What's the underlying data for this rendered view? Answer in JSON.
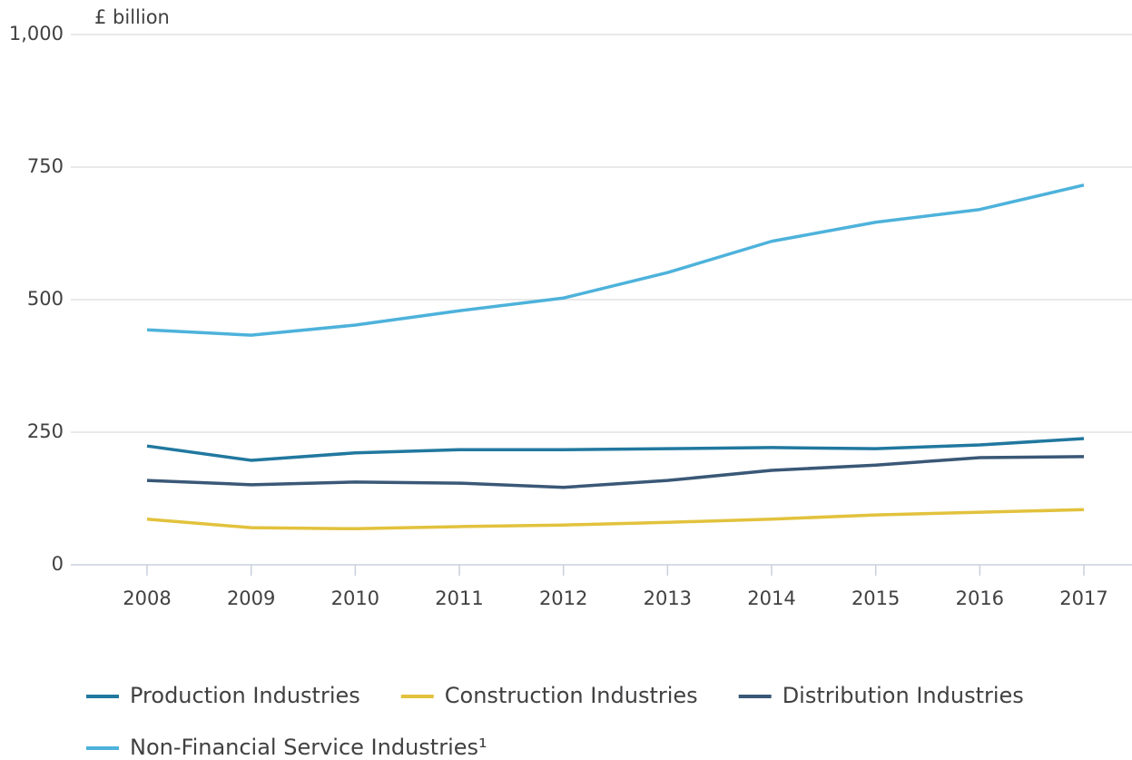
{
  "chart_data": {
    "type": "line",
    "y_label": "£ billion",
    "categories": [
      "2008",
      "2009",
      "2010",
      "2011",
      "2012",
      "2013",
      "2014",
      "2015",
      "2016",
      "2017"
    ],
    "series": [
      {
        "name": "Production Industries",
        "color": "#21789f",
        "values": [
          224,
          197,
          211,
          217,
          217,
          219,
          221,
          219,
          226,
          238
        ]
      },
      {
        "name": "Construction Industries",
        "color": "#e2c23d",
        "values": [
          86,
          70,
          68,
          72,
          75,
          80,
          86,
          94,
          99,
          104
        ]
      },
      {
        "name": "Distribution Industries",
        "color": "#3a5877",
        "values": [
          159,
          151,
          156,
          154,
          146,
          159,
          178,
          188,
          202,
          204
        ]
      },
      {
        "name": "Non-Financial Service Industries¹",
        "color": "#4db2db",
        "values": [
          443,
          433,
          452,
          479,
          503,
          551,
          610,
          646,
          670,
          716
        ]
      }
    ],
    "ylim": [
      0,
      1000
    ],
    "yticks": [
      0,
      250,
      500,
      750,
      {
        "value": 1000,
        "label": "1,000"
      }
    ],
    "grid": true
  }
}
